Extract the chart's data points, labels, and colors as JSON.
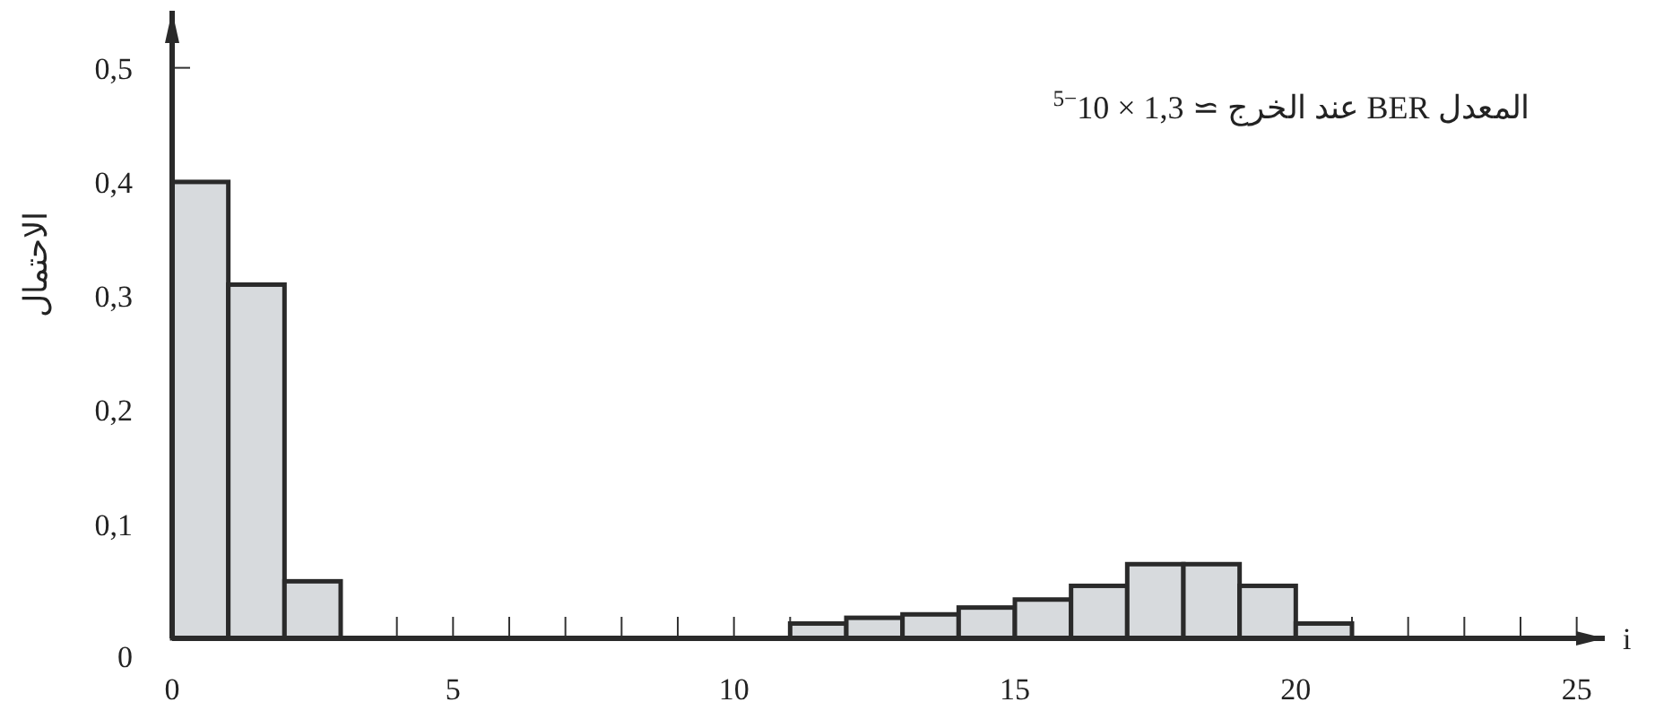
{
  "chart_data": {
    "type": "histogram",
    "annotations": [
      "المعدل BER عند الخرج ≃ 1,3 × 10$^{−5}$"
    ],
    "xlabel": "i",
    "ylabel": "الاحتمال",
    "bins": [
      0,
      1,
      2,
      3,
      4,
      5,
      6,
      7,
      8,
      9,
      10,
      11,
      12,
      13,
      14,
      15,
      16,
      17,
      18,
      19,
      20,
      21
    ],
    "values": [
      0.4,
      0.31,
      0.05,
      0,
      0,
      0,
      0,
      0,
      0,
      0,
      0,
      0.013,
      0.018,
      0.021,
      0.027,
      0.034,
      0.046,
      0.065,
      0.065,
      0.046,
      0.013
    ],
    "color": "#d7dadd",
    "xlim": [
      0,
      25.5
    ],
    "ylim": [
      0,
      0.55
    ],
    "xticks": [
      0,
      {
        "value": 1,
        "label": null
      },
      {
        "value": 2,
        "label": null
      },
      {
        "value": 3,
        "label": null
      },
      {
        "value": 4,
        "label": null
      },
      5,
      {
        "value": 6,
        "label": null
      },
      {
        "value": 7,
        "label": null
      },
      {
        "value": 8,
        "label": null
      },
      {
        "value": 9,
        "label": null
      },
      10,
      {
        "value": 11,
        "label": null
      },
      {
        "value": 12,
        "label": null
      },
      {
        "value": 13,
        "label": null
      },
      {
        "value": 14,
        "label": null
      },
      15,
      {
        "value": 16,
        "label": null
      },
      {
        "value": 17,
        "label": null
      },
      {
        "value": 18,
        "label": null
      },
      {
        "value": 19,
        "label": null
      },
      20,
      {
        "value": 21,
        "label": null
      },
      {
        "value": 22,
        "label": null
      },
      {
        "value": 23,
        "label": null
      },
      {
        "value": 24,
        "label": null
      },
      25
    ],
    "yticks": [
      0,
      {
        "value": 0.1,
        "label": "0,1"
      },
      {
        "value": 0.2,
        "label": "0,2"
      },
      {
        "value": 0.3,
        "label": "0,3"
      },
      {
        "value": 0.4,
        "label": "0,4"
      },
      {
        "value": 0.5,
        "label": "0,5"
      }
    ]
  }
}
